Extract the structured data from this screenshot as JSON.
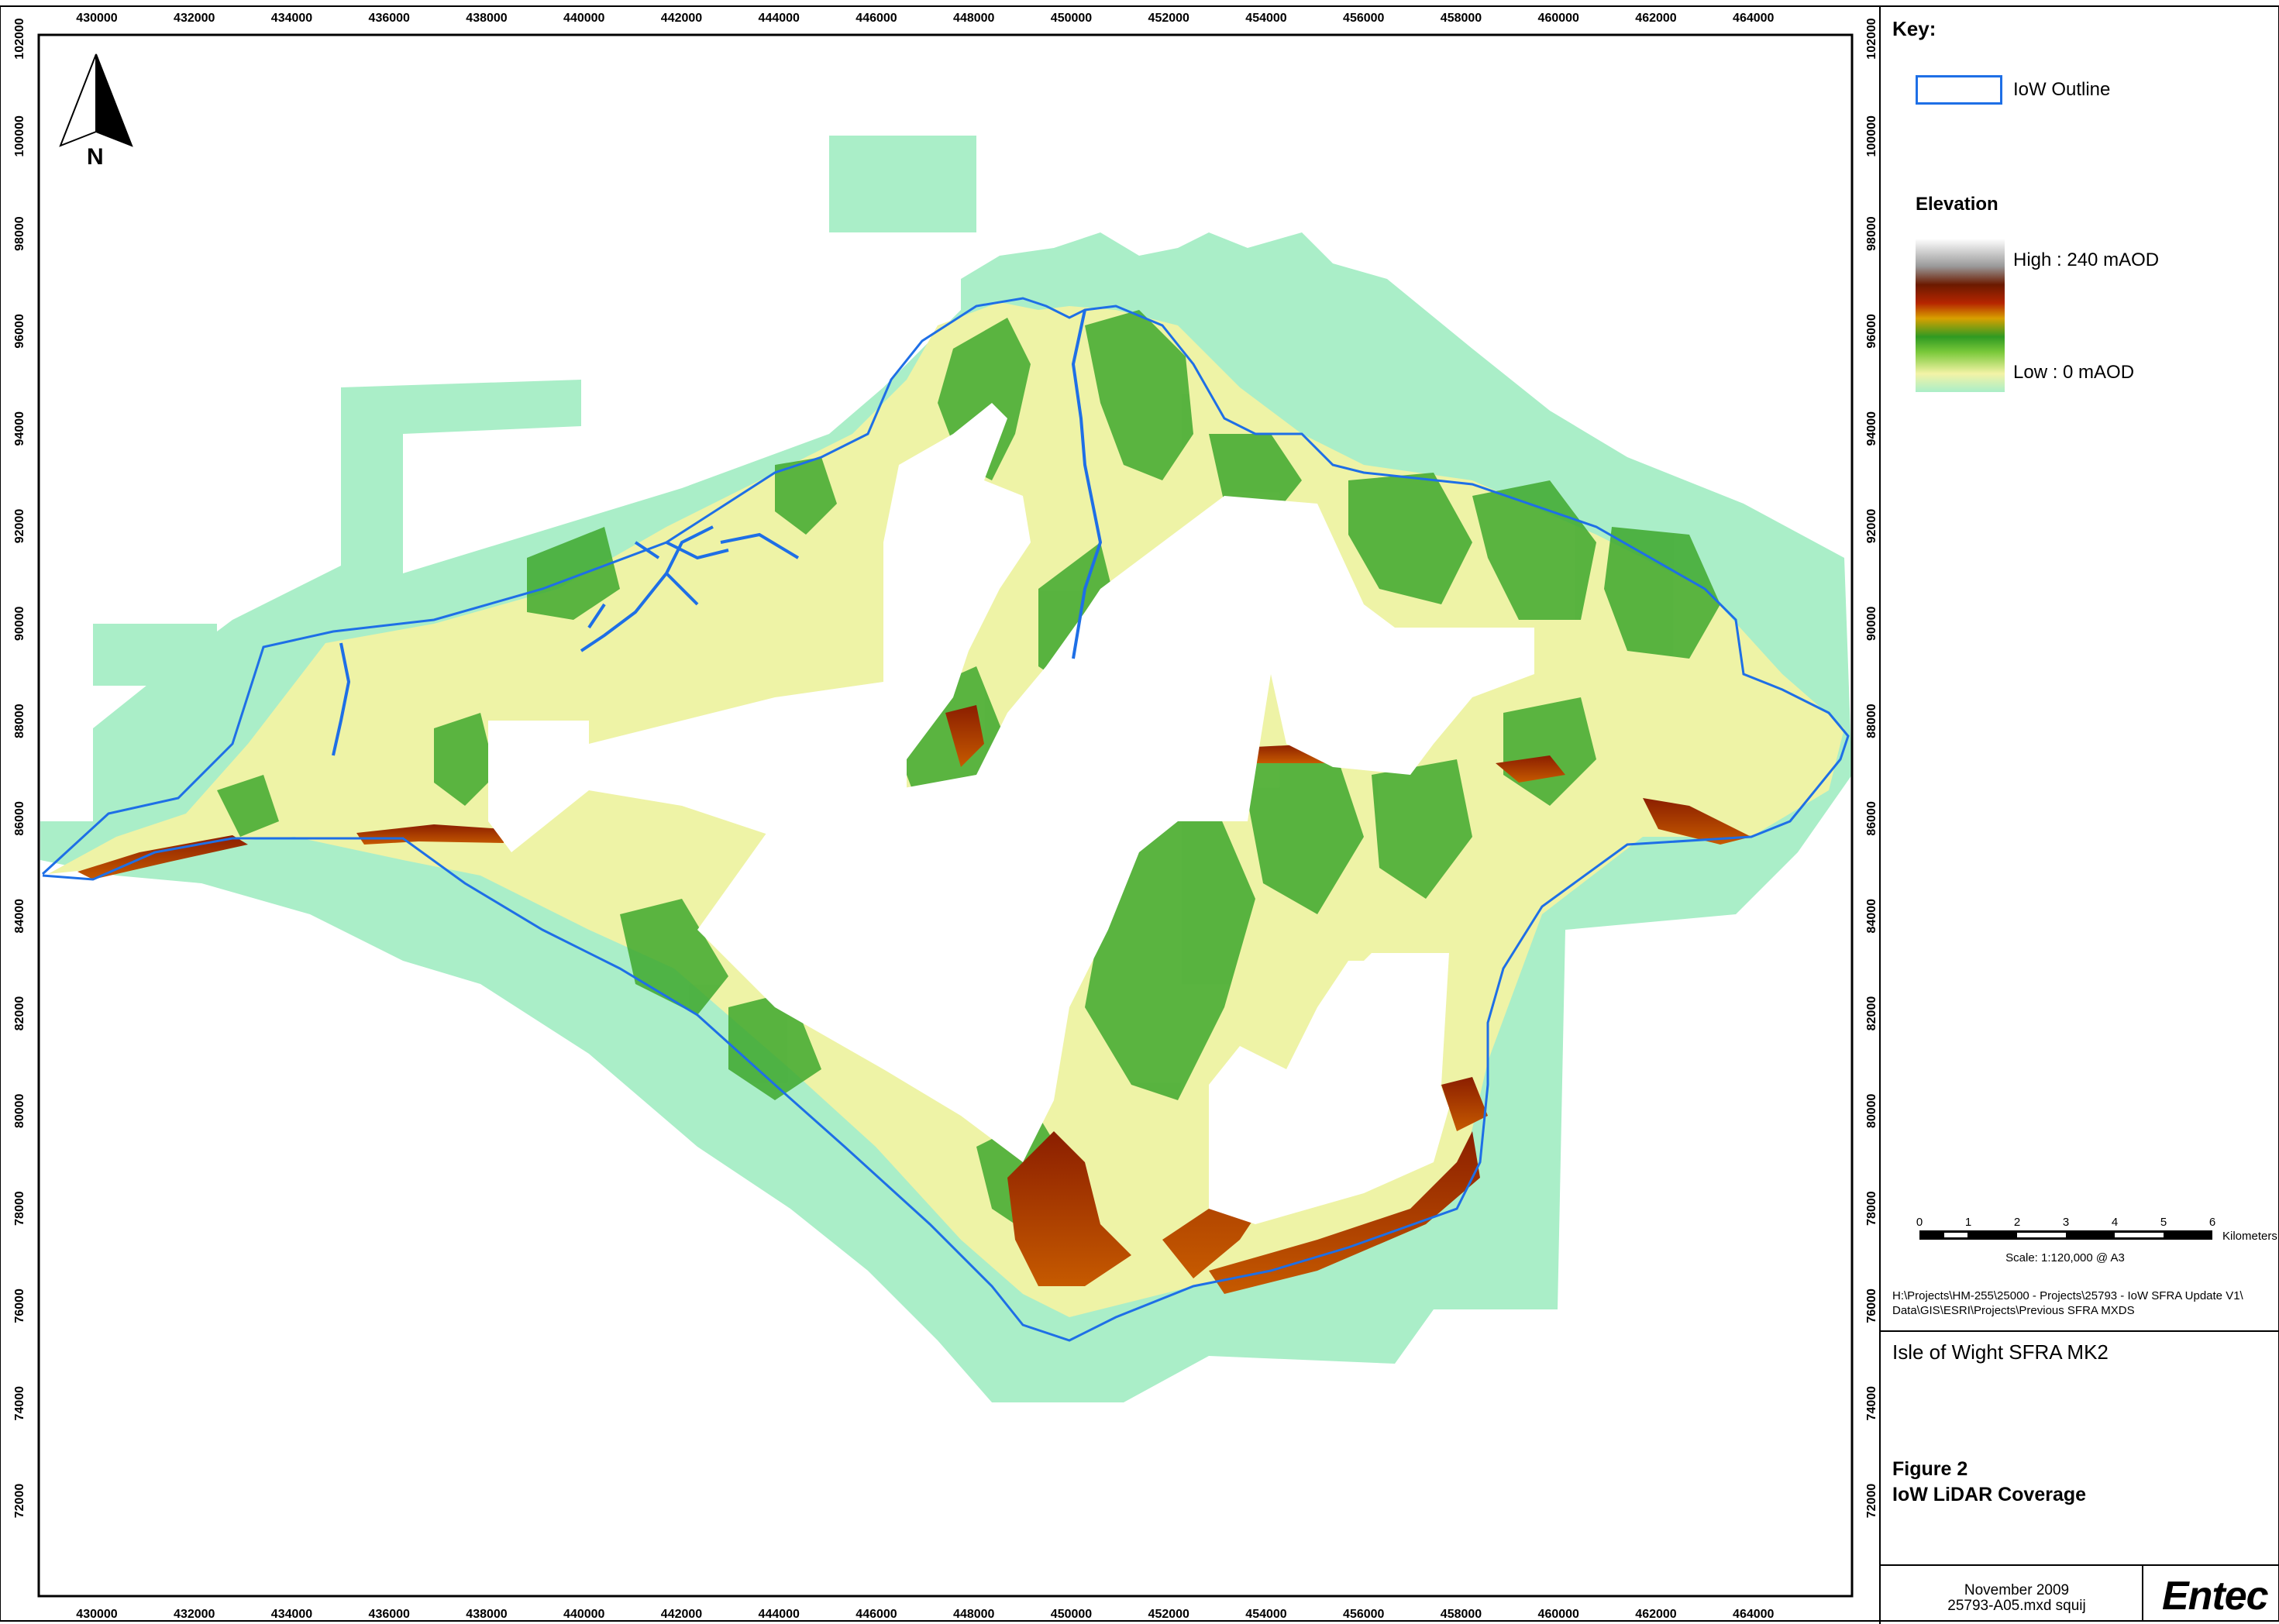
{
  "map": {
    "x_ticks": [
      "430000",
      "432000",
      "434000",
      "436000",
      "438000",
      "440000",
      "442000",
      "444000",
      "446000",
      "448000",
      "450000",
      "452000",
      "454000",
      "456000",
      "458000",
      "460000",
      "462000",
      "464000"
    ],
    "y_ticks": [
      "102000",
      "100000",
      "98000",
      "96000",
      "94000",
      "92000",
      "90000",
      "88000",
      "86000",
      "84000",
      "82000",
      "80000",
      "78000",
      "76000",
      "74000",
      "72000"
    ],
    "north_label": "N"
  },
  "key": {
    "title": "Key:",
    "outline_label": "IoW Outline",
    "outline_color": "#1e6fe6",
    "elevation_title": "Elevation",
    "high_label": "High : 240 mAOD",
    "low_label": "Low : 0 mAOD"
  },
  "scale": {
    "labels": [
      "0",
      "1",
      "2",
      "3",
      "4",
      "5",
      "6"
    ],
    "unit": "Kilometers",
    "text": "Scale: 1:120,000 @ A3"
  },
  "info": {
    "path": "H:\\Projects\\HM-255\\25000 - Projects\\25793 - IoW SFRA Update V1\\ Data\\GIS\\ESRI\\Projects\\Previous SFRA MXDS",
    "project": "Isle of Wight SFRA MK2",
    "figure_number": "Figure 2",
    "figure_title": "IoW LiDAR Coverage",
    "date": "November 2009",
    "file": "25793-A05.mxd squij",
    "logo": "Entec"
  }
}
